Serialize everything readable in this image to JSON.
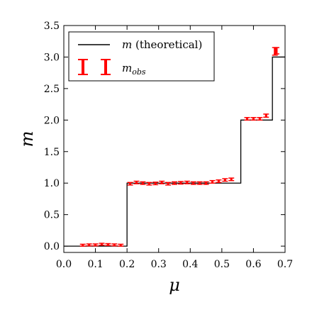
{
  "chart_data": {
    "type": "line",
    "xlabel": "μ",
    "ylabel": "m",
    "xlim": [
      0.0,
      0.7
    ],
    "ylim": [
      -0.1,
      3.5
    ],
    "x_ticks": [
      "0.0",
      "0.1",
      "0.2",
      "0.3",
      "0.4",
      "0.5",
      "0.6",
      "0.7"
    ],
    "y_ticks": [
      "0.0",
      "0.5",
      "1.0",
      "1.5",
      "2.0",
      "2.5",
      "3.0",
      "3.5"
    ],
    "x_tick_values": [
      0.0,
      0.1,
      0.2,
      0.3,
      0.4,
      0.5,
      0.6,
      0.7
    ],
    "y_tick_values": [
      0.0,
      0.5,
      1.0,
      1.5,
      2.0,
      2.5,
      3.0,
      3.5
    ],
    "grid": false,
    "legend_position": "top-left",
    "legend": {
      "theoretical_var": "m",
      "theoretical_rest": " (theoretical)",
      "obs_base": "m",
      "obs_sub": "obs"
    },
    "series": [
      {
        "kind": "step",
        "color": "#000000",
        "points": [
          [
            0.0,
            0.0
          ],
          [
            0.2,
            0.0
          ],
          [
            0.2,
            1.0
          ],
          [
            0.56,
            1.0
          ],
          [
            0.56,
            2.0
          ],
          [
            0.66,
            2.0
          ],
          [
            0.66,
            3.0
          ],
          [
            0.7,
            3.0
          ]
        ]
      },
      {
        "kind": "errorbar",
        "color": "#ff0000",
        "points": [
          {
            "x": 0.06,
            "y": 0.015,
            "err": 0.015
          },
          {
            "x": 0.08,
            "y": 0.02,
            "err": 0.015
          },
          {
            "x": 0.1,
            "y": 0.02,
            "err": 0.015
          },
          {
            "x": 0.12,
            "y": 0.03,
            "err": 0.015
          },
          {
            "x": 0.14,
            "y": 0.025,
            "err": 0.015
          },
          {
            "x": 0.16,
            "y": 0.02,
            "err": 0.015
          },
          {
            "x": 0.18,
            "y": 0.015,
            "err": 0.015
          },
          {
            "x": 0.21,
            "y": 0.99,
            "err": 0.02
          },
          {
            "x": 0.23,
            "y": 1.01,
            "err": 0.02
          },
          {
            "x": 0.25,
            "y": 1.0,
            "err": 0.02
          },
          {
            "x": 0.27,
            "y": 0.99,
            "err": 0.02
          },
          {
            "x": 0.29,
            "y": 0.995,
            "err": 0.02
          },
          {
            "x": 0.31,
            "y": 1.01,
            "err": 0.02
          },
          {
            "x": 0.33,
            "y": 0.99,
            "err": 0.02
          },
          {
            "x": 0.35,
            "y": 1.0,
            "err": 0.02
          },
          {
            "x": 0.37,
            "y": 1.005,
            "err": 0.02
          },
          {
            "x": 0.39,
            "y": 1.01,
            "err": 0.02
          },
          {
            "x": 0.41,
            "y": 1.0,
            "err": 0.02
          },
          {
            "x": 0.43,
            "y": 1.0,
            "err": 0.02
          },
          {
            "x": 0.45,
            "y": 1.0,
            "err": 0.02
          },
          {
            "x": 0.47,
            "y": 1.02,
            "err": 0.02
          },
          {
            "x": 0.49,
            "y": 1.03,
            "err": 0.02
          },
          {
            "x": 0.51,
            "y": 1.05,
            "err": 0.02
          },
          {
            "x": 0.53,
            "y": 1.06,
            "err": 0.02
          },
          {
            "x": 0.58,
            "y": 2.02,
            "err": 0.02
          },
          {
            "x": 0.6,
            "y": 2.02,
            "err": 0.02
          },
          {
            "x": 0.62,
            "y": 2.02,
            "err": 0.02
          },
          {
            "x": 0.64,
            "y": 2.07,
            "err": 0.025
          },
          {
            "x": 0.668,
            "y": 3.09,
            "err": 0.06
          },
          {
            "x": 0.673,
            "y": 3.1,
            "err": 0.05
          }
        ]
      }
    ]
  }
}
